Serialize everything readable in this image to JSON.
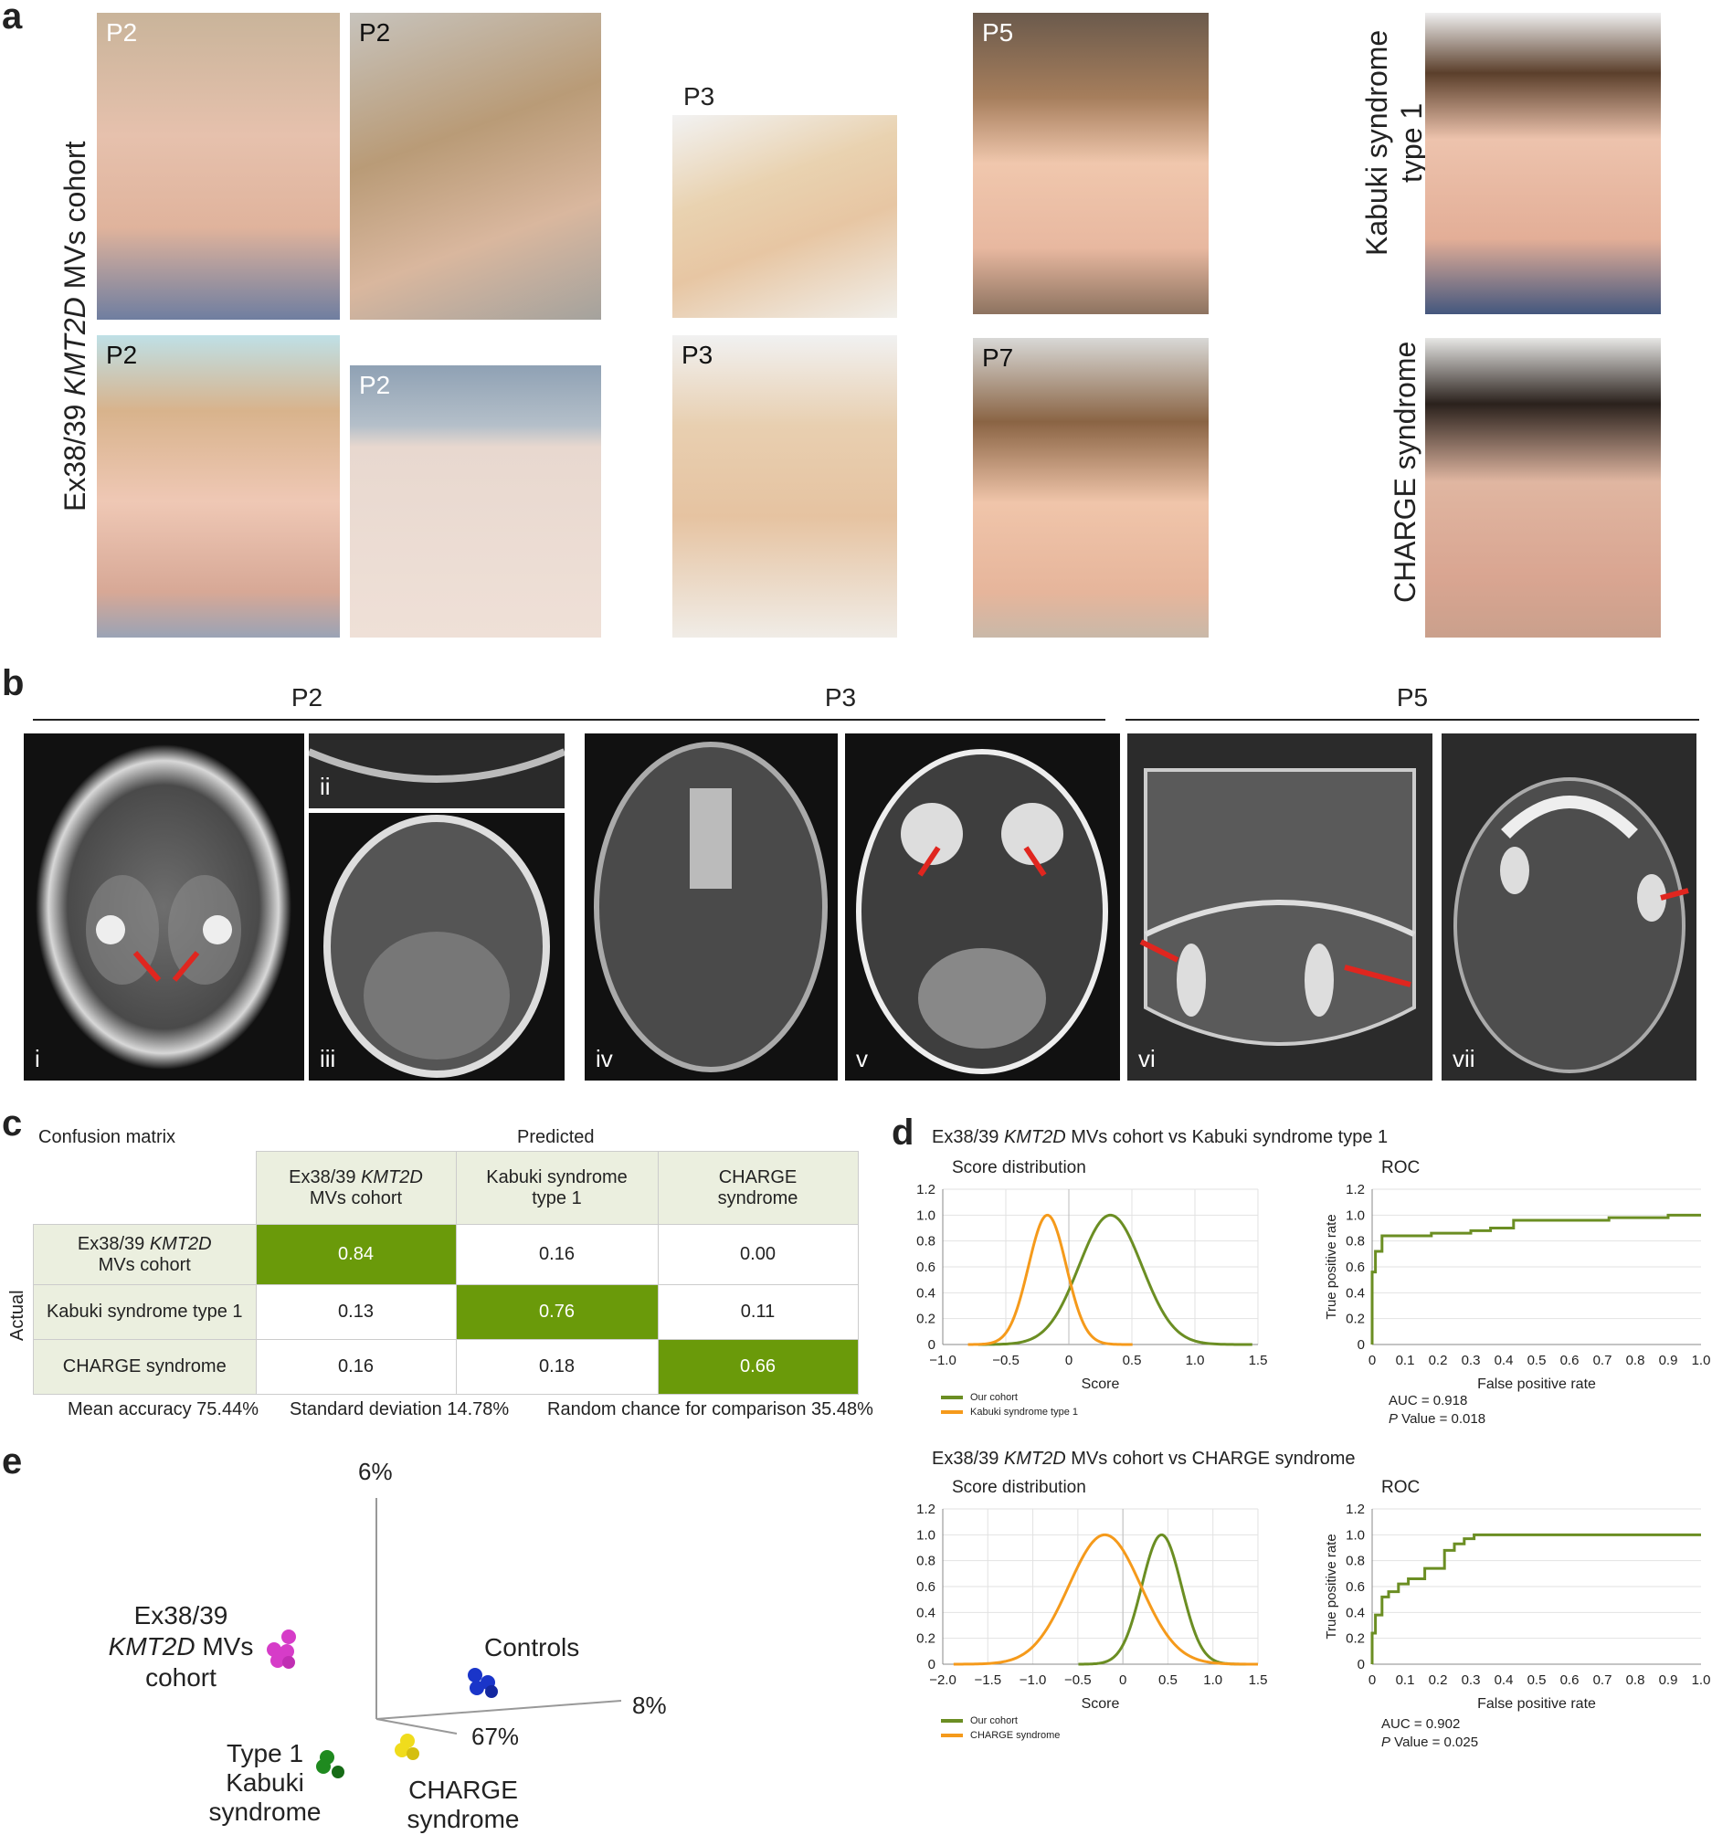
{
  "panel_a": {
    "letter": "a",
    "side_label_prefix": "Ex38/39 ",
    "side_label_gene": "KMT2D",
    "side_label_suffix": " MVs cohort",
    "photo_labels": [
      "P2",
      "P2",
      "P2",
      "P2",
      "P3",
      "P3",
      "P5",
      "P7"
    ],
    "kabuki_label_line1": "Kabuki syndrome",
    "kabuki_label_line2": "type 1",
    "charge_label": "CHARGE syndrome"
  },
  "panel_b": {
    "letter": "b",
    "groups": [
      "P2",
      "P3",
      "P5"
    ],
    "scan_labels": [
      "i",
      "ii",
      "iii",
      "iv",
      "v",
      "vi",
      "vii"
    ]
  },
  "panel_c": {
    "letter": "c",
    "title": "Confusion matrix",
    "predicted_label": "Predicted",
    "actual_label": "Actual",
    "col_headers": [
      {
        "pre": "Ex38/39 ",
        "gene": "KMT2D",
        "post": "MVs cohort"
      },
      {
        "pre": "Kabuki syndrome",
        "gene": "",
        "post": "type 1"
      },
      {
        "pre": "CHARGE",
        "gene": "",
        "post": "syndrome"
      }
    ],
    "row_headers": [
      "Ex38/39 KMT2D MVs cohort",
      "Kabuki syndrome type 1",
      "CHARGE syndrome"
    ],
    "row0_pre": "Ex38/39 ",
    "row0_gene": "KMT2D",
    "row0_post": "MVs cohort",
    "matrix": [
      [
        "0.84",
        "0.16",
        "0.00"
      ],
      [
        "0.13",
        "0.76",
        "0.11"
      ],
      [
        "0.16",
        "0.18",
        "0.66"
      ]
    ],
    "mean_accuracy": "Mean accuracy 75.44%",
    "std_dev": "Standard deviation 14.78%",
    "random_chance": "Random chance for comparison 35.48%"
  },
  "panel_d": {
    "letter": "d",
    "top_title_pre": "Ex38/39 ",
    "top_title_gene": "KMT2D",
    "top_title_post": " MVs cohort vs Kabuki syndrome type 1",
    "bottom_title_pre": "Ex38/39 ",
    "bottom_title_gene": "KMT2D",
    "bottom_title_post": " MVs cohort vs CHARGE syndrome",
    "score_title": "Score distribution",
    "roc_title": "ROC",
    "score_xlabel": "Score",
    "roc_xlabel": "False positive rate",
    "roc_ylabel": "True positive rate",
    "legend_our": "Our cohort",
    "legend_kabuki": "Kabuki syndrome type 1",
    "legend_charge": "CHARGE syndrome",
    "auc_top": "AUC = 0.918",
    "p_top_label": "P",
    "p_top_value": " Value = 0.018",
    "auc_bottom": "AUC = 0.902",
    "p_bottom_label": "P",
    "p_bottom_value": " Value = 0.025",
    "colors": {
      "cohort": "#6b8e23",
      "compare": "#f59a1b"
    }
  },
  "chart_data": [
    {
      "type": "line",
      "title": "Score distribution",
      "xlabel": "Score",
      "xlim": [
        -1.0,
        1.5
      ],
      "ylim": [
        0,
        1.2
      ],
      "xticks": [
        "−1.0",
        "−0.5",
        "0",
        "0.5",
        "1.0",
        "1.5"
      ],
      "yticks": [
        "0",
        "0.2",
        "0.4",
        "0.6",
        "0.8",
        "1.0",
        "1.2"
      ],
      "series": [
        {
          "name": "Our cohort",
          "mean": 0.33,
          "sd": 0.25
        },
        {
          "name": "Kabuki syndrome type 1",
          "mean": -0.17,
          "sd": 0.15
        }
      ]
    },
    {
      "type": "line",
      "title": "ROC",
      "xlabel": "False positive rate",
      "ylabel": "True positive rate",
      "xlim": [
        0,
        1.0
      ],
      "ylim": [
        0,
        1.2
      ],
      "xticks": [
        "0",
        "0.1",
        "0.2",
        "0.3",
        "0.4",
        "0.5",
        "0.6",
        "0.7",
        "0.8",
        "0.9",
        "1.0"
      ],
      "yticks": [
        "0",
        "0.2",
        "0.4",
        "0.6",
        "0.8",
        "1.0",
        "1.2"
      ],
      "series": [
        {
          "name": "",
          "x": [
            0,
            0,
            0.01,
            0.01,
            0.03,
            0.03,
            0.18,
            0.18,
            0.3,
            0.3,
            0.36,
            0.36,
            0.43,
            0.43,
            0.72,
            0.72,
            0.9,
            0.9,
            1.0
          ],
          "y": [
            0,
            0.56,
            0.56,
            0.72,
            0.72,
            0.84,
            0.84,
            0.86,
            0.86,
            0.88,
            0.88,
            0.9,
            0.9,
            0.96,
            0.96,
            0.98,
            0.98,
            1.0,
            1.0
          ]
        }
      ]
    },
    {
      "type": "line",
      "title": "Score distribution",
      "xlabel": "Score",
      "xlim": [
        -2.0,
        1.5
      ],
      "ylim": [
        0,
        1.2
      ],
      "xticks": [
        "−2.0",
        "−1.5",
        "−1.0",
        "−0.5",
        "0",
        "0.5",
        "1.0",
        "1.5"
      ],
      "yticks": [
        "0",
        "0.2",
        "0.4",
        "0.6",
        "0.8",
        "1.0",
        "1.2"
      ],
      "series": [
        {
          "name": "Our cohort",
          "mean": 0.43,
          "sd": 0.22
        },
        {
          "name": "CHARGE syndrome",
          "mean": -0.2,
          "sd": 0.4
        }
      ]
    },
    {
      "type": "line",
      "title": "ROC",
      "xlabel": "False positive rate",
      "ylabel": "True positive rate",
      "xlim": [
        0,
        1.0
      ],
      "ylim": [
        0,
        1.2
      ],
      "xticks": [
        "0",
        "0.1",
        "0.2",
        "0.3",
        "0.4",
        "0.5",
        "0.6",
        "0.7",
        "0.8",
        "0.9",
        "1.0"
      ],
      "yticks": [
        "0",
        "0.2",
        "0.4",
        "0.6",
        "0.8",
        "1.0",
        "1.2"
      ],
      "series": [
        {
          "name": "",
          "x": [
            0,
            0,
            0.01,
            0.01,
            0.03,
            0.03,
            0.05,
            0.05,
            0.08,
            0.08,
            0.11,
            0.11,
            0.16,
            0.16,
            0.22,
            0.22,
            0.25,
            0.25,
            0.28,
            0.28,
            0.31,
            0.31,
            1.0
          ],
          "y": [
            0,
            0.24,
            0.24,
            0.38,
            0.38,
            0.52,
            0.52,
            0.56,
            0.56,
            0.62,
            0.62,
            0.66,
            0.66,
            0.74,
            0.74,
            0.88,
            0.88,
            0.93,
            0.93,
            0.97,
            0.97,
            1.0,
            1.0
          ]
        }
      ]
    }
  ],
  "panel_e": {
    "letter": "e",
    "axis_top": "6%",
    "axis_right": "8%",
    "axis_bottom": "67%",
    "cohort_l1": "Ex38/39",
    "cohort_gene": "KMT2D",
    "cohort_l2_post": " MVs",
    "cohort_l3": "cohort",
    "controls": "Controls",
    "kabuki_l1": "Type 1",
    "kabuki_l2": "Kabuki",
    "kabuki_l3": "syndrome",
    "charge_l1": "CHARGE",
    "charge_l2": "syndrome"
  }
}
